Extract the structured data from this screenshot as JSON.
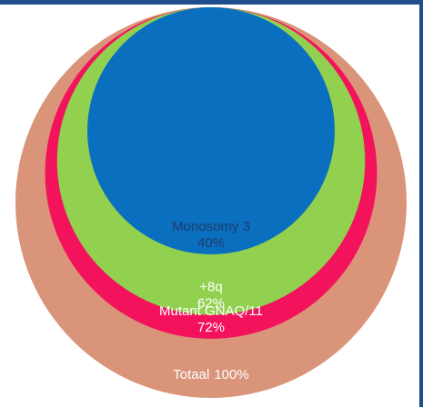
{
  "chart_data": {
    "type": "nested-circles",
    "categories": [
      "Monosomy 3",
      "+8q",
      "Mutant GNAQ/11",
      "Totaal"
    ],
    "values": [
      40,
      62,
      72,
      100
    ],
    "value_labels": [
      "40%",
      "62%",
      "72%",
      "100%"
    ],
    "colors": [
      "#0a6fbf",
      "#92d050",
      "#f3125c",
      "#d99479"
    ]
  }
}
